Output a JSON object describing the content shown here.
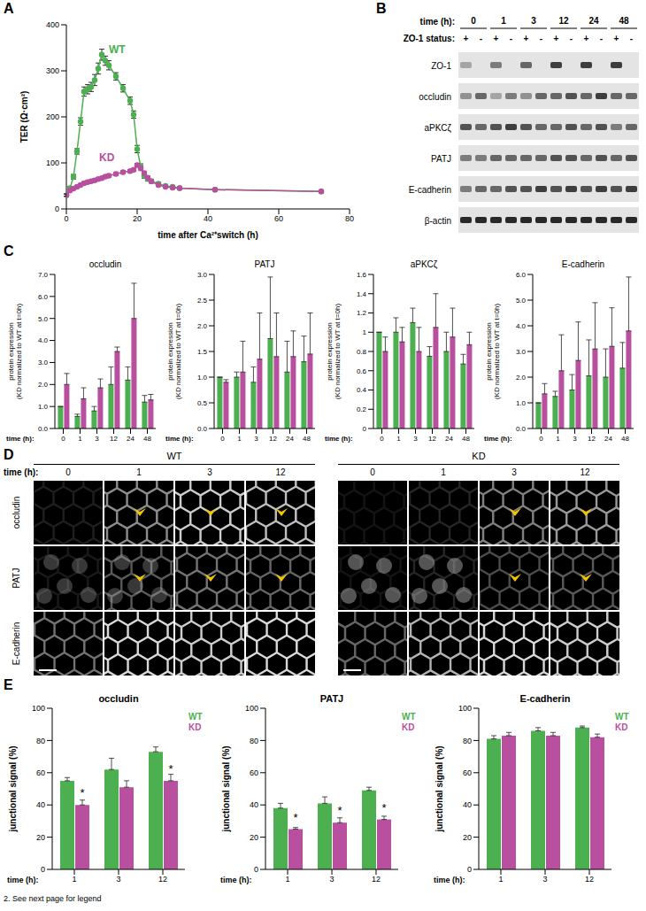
{
  "chart_data": [
    {
      "panel": "A",
      "type": "line",
      "xlabel": "time after Ca²⁺switch (h)",
      "ylabel": "TER (Ω·cm²)",
      "x": [
        0,
        1,
        2,
        3,
        4,
        5,
        6,
        7,
        8,
        9,
        10,
        11,
        12,
        14,
        16,
        18,
        19,
        20,
        21,
        22,
        23,
        24,
        26,
        28,
        30,
        32,
        42,
        72
      ],
      "xlim": [
        0,
        80
      ],
      "xticks": [
        0,
        20,
        40,
        60,
        80
      ],
      "ylim": [
        0,
        400
      ],
      "yticks": [
        0,
        100,
        200,
        300,
        400
      ],
      "series": [
        {
          "name": "WT",
          "color": "#4caf50",
          "marker": "circle",
          "values": [
            30,
            45,
            70,
            125,
            190,
            255,
            260,
            265,
            280,
            305,
            335,
            322,
            312,
            288,
            262,
            235,
            205,
            130,
            92,
            72,
            65,
            60,
            55,
            50,
            48,
            45,
            42,
            38
          ],
          "errors": [
            3,
            4,
            5,
            6,
            8,
            10,
            10,
            10,
            12,
            12,
            12,
            10,
            10,
            8,
            8,
            8,
            8,
            8,
            6,
            5,
            4,
            4,
            3,
            3,
            3,
            3,
            3,
            3
          ]
        },
        {
          "name": "KD",
          "color": "#b8509f",
          "marker": "circle",
          "values": [
            30,
            40,
            44,
            48,
            52,
            56,
            58,
            60,
            62,
            65,
            67,
            70,
            72,
            76,
            80,
            82,
            85,
            95,
            88,
            78,
            68,
            60,
            52,
            48,
            46,
            45,
            42,
            38
          ],
          "errors": [
            2,
            2,
            2,
            2,
            2,
            3,
            3,
            3,
            3,
            3,
            3,
            3,
            3,
            3,
            3,
            3,
            3,
            4,
            3,
            3,
            3,
            3,
            2,
            2,
            2,
            2,
            2,
            2
          ]
        }
      ]
    },
    {
      "panel": "C",
      "type": "bar",
      "title": "occludin",
      "ylabel": "protein expression (KD normalized to WT at t=0h)",
      "xlabel": "time (h):",
      "categories": [
        "0",
        "1",
        "3",
        "12",
        "24",
        "48"
      ],
      "ylim": [
        0,
        7
      ],
      "yticks": [
        {
          "value": 0,
          "label": "0.0"
        },
        {
          "value": 1,
          "label": "1.0"
        },
        {
          "value": 2,
          "label": "2.0"
        },
        {
          "value": 3,
          "label": "3.0"
        },
        {
          "value": 4,
          "label": "4.0"
        },
        {
          "value": 5,
          "label": "5.0"
        },
        {
          "value": 6,
          "label": "6.0"
        },
        {
          "value": 7,
          "label": "7.0"
        }
      ],
      "series": [
        {
          "name": "WT",
          "color": "#4caf50",
          "values": [
            1.0,
            0.55,
            0.8,
            2.0,
            2.2,
            1.2
          ],
          "errors": [
            0,
            0.1,
            0.2,
            0.8,
            0.6,
            0.3
          ]
        },
        {
          "name": "KD",
          "color": "#b8509f",
          "values": [
            2.0,
            1.35,
            1.85,
            3.5,
            5.0,
            1.3
          ],
          "errors": [
            0.5,
            0.5,
            0.4,
            0.2,
            1.6,
            0.25
          ]
        }
      ]
    },
    {
      "type": "bar",
      "title": "PATJ",
      "ylabel": "protein expression (KD normalized to WT at t=0h)",
      "xlabel": "time (h):",
      "categories": [
        "0",
        "1",
        "3",
        "12",
        "24",
        "48"
      ],
      "ylim": [
        0,
        3
      ],
      "yticks": [
        {
          "value": 0,
          "label": "0.0"
        },
        {
          "value": 0.5,
          "label": "0.5"
        },
        {
          "value": 1,
          "label": "1.0"
        },
        {
          "value": 1.5,
          "label": "1.5"
        },
        {
          "value": 2,
          "label": "2.0"
        },
        {
          "value": 2.5,
          "label": "2.5"
        },
        {
          "value": 3,
          "label": "3.0"
        }
      ],
      "series": [
        {
          "name": "WT",
          "color": "#4caf50",
          "values": [
            1.0,
            1.0,
            0.9,
            1.75,
            1.1,
            1.3
          ],
          "errors": [
            0,
            0.1,
            0.3,
            1.2,
            0.6,
            0.5
          ]
        },
        {
          "name": "KD",
          "color": "#b8509f",
          "values": [
            0.9,
            1.1,
            1.35,
            1.4,
            1.4,
            1.45
          ],
          "errors": [
            0.05,
            0.6,
            0.9,
            0.85,
            0.5,
            0.8
          ]
        }
      ]
    },
    {
      "type": "bar",
      "title": "aPKCζ",
      "ylabel": "protein expression (KD normalized to WT at t=0h)",
      "xlabel": "time (h):",
      "categories": [
        "0",
        "1",
        "3",
        "12",
        "24",
        "48"
      ],
      "ylim": [
        0,
        1.6
      ],
      "yticks": [
        0,
        0.2,
        0.4,
        0.6,
        0.8,
        1,
        1.2,
        1.4,
        1.6
      ],
      "series": [
        {
          "name": "WT",
          "color": "#4caf50",
          "values": [
            1.0,
            1.0,
            1.1,
            0.75,
            0.8,
            0.67
          ],
          "errors": [
            0,
            0.15,
            0.15,
            0.1,
            0.2,
            0.1
          ]
        },
        {
          "name": "KD",
          "color": "#b8509f",
          "values": [
            0.8,
            0.9,
            0.8,
            1.05,
            0.95,
            0.87
          ],
          "errors": [
            0.15,
            0.15,
            0.25,
            0.35,
            0.3,
            0.13
          ]
        }
      ]
    },
    {
      "type": "bar",
      "title": "E-cadherin",
      "ylabel": "protein expression (KD normalized to WT at t=0h)",
      "xlabel": "time (h):",
      "categories": [
        "0",
        "1",
        "3",
        "12",
        "24",
        "48"
      ],
      "ylim": [
        0,
        6
      ],
      "yticks": [
        {
          "value": 0,
          "label": "0.0"
        },
        {
          "value": 1,
          "label": "1.0"
        },
        {
          "value": 2,
          "label": "2.0"
        },
        {
          "value": 3,
          "label": "3.0"
        },
        {
          "value": 4,
          "label": "4.0"
        },
        {
          "value": 5,
          "label": "5.0"
        },
        {
          "value": 6,
          "label": "6.0"
        }
      ],
      "series": [
        {
          "name": "WT",
          "color": "#4caf50",
          "values": [
            1.0,
            1.25,
            1.5,
            2.05,
            2.0,
            2.35
          ],
          "errors": [
            0,
            0.2,
            0.6,
            1.4,
            1.1,
            1.0
          ]
        },
        {
          "name": "KD",
          "color": "#b8509f",
          "values": [
            1.35,
            2.25,
            2.65,
            3.1,
            3.2,
            3.8
          ],
          "errors": [
            0.4,
            1.4,
            1.5,
            1.8,
            1.5,
            2.1
          ]
        }
      ]
    },
    {
      "panel": "E",
      "type": "bar",
      "title": "occludin",
      "ylabel": "junctional signal (%)",
      "xlabel": "time (h):",
      "legend": "right",
      "categories": [
        "1",
        "3",
        "12"
      ],
      "ylim": [
        0,
        100
      ],
      "yticks": [
        0,
        20,
        40,
        60,
        80,
        100
      ],
      "series": [
        {
          "name": "WT",
          "color": "#4caf50",
          "values": [
            55,
            62,
            73
          ],
          "errors": [
            2,
            7,
            3
          ]
        },
        {
          "name": "KD",
          "color": "#b8509f",
          "values": [
            40,
            51,
            55
          ],
          "errors": [
            3,
            4,
            4
          ],
          "significance": [
            "*",
            null,
            "*"
          ]
        }
      ]
    },
    {
      "type": "bar",
      "title": "PATJ",
      "ylabel": "junctional signal (%)",
      "xlabel": "time (h):",
      "legend": "right",
      "categories": [
        "1",
        "3",
        "12"
      ],
      "ylim": [
        0,
        100
      ],
      "yticks": [
        0,
        20,
        40,
        60,
        80,
        100
      ],
      "series": [
        {
          "name": "WT",
          "color": "#4caf50",
          "values": [
            38,
            41,
            49
          ],
          "errors": [
            3,
            4,
            2
          ]
        },
        {
          "name": "KD",
          "color": "#b8509f",
          "values": [
            25,
            29,
            31
          ],
          "errors": [
            1,
            3,
            2
          ],
          "significance": [
            "*",
            "*",
            "*"
          ]
        }
      ]
    },
    {
      "type": "bar",
      "title": "E-cadherin",
      "ylabel": "junctional signal (%)",
      "xlabel": "time (h):",
      "legend": "right",
      "categories": [
        "1",
        "3",
        "12"
      ],
      "ylim": [
        0,
        100
      ],
      "yticks": [
        0,
        20,
        40,
        60,
        80,
        100
      ],
      "series": [
        {
          "name": "WT",
          "color": "#4caf50",
          "values": [
            81,
            86,
            88
          ],
          "errors": [
            2,
            2,
            1
          ]
        },
        {
          "name": "KD",
          "color": "#b8509f",
          "values": [
            83,
            83,
            82
          ],
          "errors": [
            2,
            2,
            2
          ]
        }
      ]
    }
  ],
  "blot": {
    "panel": "B",
    "time_label": "time (h):",
    "times": [
      "0",
      "1",
      "3",
      "12",
      "24",
      "48"
    ],
    "status_label": "ZO-1 status:",
    "status": [
      "+",
      "-",
      "+",
      "-",
      "+",
      "-",
      "+",
      "-",
      "+",
      "-",
      "+",
      "-"
    ],
    "rows": [
      {
        "label": "ZO-1",
        "intensity": [
          0.3,
          0,
          0.5,
          0,
          0.6,
          0,
          0.8,
          0,
          0.8,
          0,
          0.8,
          0
        ]
      },
      {
        "label": "occludin",
        "intensity": [
          0.4,
          0.6,
          0.3,
          0.5,
          0.4,
          0.6,
          0.6,
          0.7,
          0.6,
          0.8,
          0.6,
          0.6
        ]
      },
      {
        "label": "aPKCζ",
        "intensity": [
          0.7,
          0.6,
          0.7,
          0.8,
          0.7,
          0.6,
          0.6,
          0.7,
          0.6,
          0.7,
          0.5,
          0.6
        ]
      },
      {
        "label": "PATJ",
        "intensity": [
          0.5,
          0.5,
          0.6,
          0.6,
          0.6,
          0.6,
          0.7,
          0.7,
          0.6,
          0.7,
          0.6,
          0.7
        ]
      },
      {
        "label": "E-cadherin",
        "intensity": [
          0.5,
          0.6,
          0.6,
          0.7,
          0.7,
          0.8,
          0.7,
          0.8,
          0.7,
          0.8,
          0.7,
          0.8
        ]
      },
      {
        "label": "β-actin",
        "intensity": [
          0.9,
          0.9,
          0.9,
          0.9,
          0.9,
          0.9,
          0.9,
          0.9,
          0.9,
          0.9,
          0.9,
          0.9
        ]
      }
    ]
  },
  "micrographs": {
    "panel": "D",
    "time_label": "time (h):",
    "groups": [
      {
        "label": "WT",
        "times": [
          "0",
          "1",
          "3",
          "12"
        ]
      },
      {
        "label": "KD",
        "times": [
          "0",
          "1",
          "3",
          "12"
        ]
      }
    ],
    "rows": [
      "occludin",
      "PATJ",
      "E-cadherin"
    ]
  },
  "footer": "2. See next page for legend"
}
